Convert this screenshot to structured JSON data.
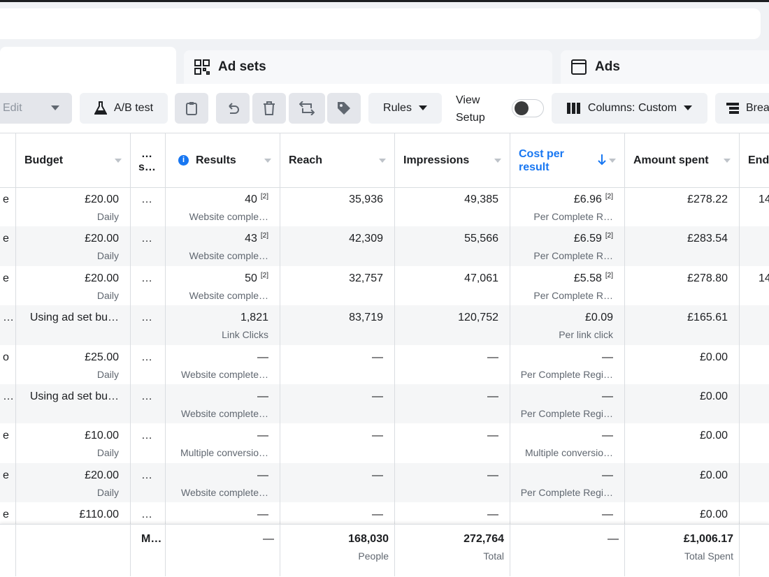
{
  "tabs": [
    "Ad sets",
    "Ads"
  ],
  "toolbar": {
    "edit": "Edit",
    "ab_test": "A/B test",
    "rules": "Rules",
    "view_setup": "View Setup",
    "columns": "Columns: Custom",
    "breakdown": "Brea"
  },
  "table": {
    "columns": [
      "Budget",
      "… s…",
      "Results",
      "Reach",
      "Impressions",
      "Cost per result",
      "Amount spent",
      "End"
    ],
    "rows": [
      {
        "cells": [
          {
            "text": "e"
          },
          {
            "text": "£20.00",
            "sub": "Daily"
          },
          {
            "text": "…"
          },
          {
            "text": "40",
            "note": "[2]",
            "sub": "Website comple…"
          },
          {
            "text": "35,936"
          },
          {
            "text": "49,385"
          },
          {
            "text": "£6.96",
            "note": "[2]",
            "sub": "Per Complete R…"
          },
          {
            "text": "£278.22"
          },
          {
            "text": "14"
          }
        ]
      },
      {
        "cells": [
          {
            "text": "e"
          },
          {
            "text": "£20.00",
            "sub": "Daily"
          },
          {
            "text": "…"
          },
          {
            "text": "43",
            "note": "[2]",
            "sub": "Website comple…"
          },
          {
            "text": "42,309"
          },
          {
            "text": "55,566"
          },
          {
            "text": "£6.59",
            "note": "[2]",
            "sub": "Per Complete R…"
          },
          {
            "text": "£283.54"
          }
        ]
      },
      {
        "cells": [
          {
            "text": "e"
          },
          {
            "text": "£20.00",
            "sub": "Daily"
          },
          {
            "text": "…"
          },
          {
            "text": "50",
            "note": "[2]",
            "sub": "Website comple…"
          },
          {
            "text": "32,757"
          },
          {
            "text": "47,061"
          },
          {
            "text": "£5.58",
            "note": "[2]",
            "sub": "Per Complete R…"
          },
          {
            "text": "£278.80"
          },
          {
            "text": "14"
          }
        ]
      },
      {
        "cells": [
          {
            "text": "…"
          },
          {
            "text": "Using ad set bu…"
          },
          {
            "text": "…"
          },
          {
            "text": "1,821",
            "sub": "Link Clicks"
          },
          {
            "text": "83,719"
          },
          {
            "text": "120,752"
          },
          {
            "text": "£0.09",
            "sub": "Per link click"
          },
          {
            "text": "£165.61"
          }
        ]
      },
      {
        "cells": [
          {
            "text": "o"
          },
          {
            "text": "£25.00",
            "sub": "Daily"
          },
          {
            "text": "…"
          },
          {
            "text": "—",
            "sub": "Website complete…"
          },
          {
            "text": "—"
          },
          {
            "text": "—"
          },
          {
            "text": "—",
            "sub": "Per Complete Regi…"
          },
          {
            "text": "£0.00"
          }
        ]
      },
      {
        "cells": [
          {
            "text": "…"
          },
          {
            "text": "Using ad set bu…"
          },
          {
            "text": "…"
          },
          {
            "text": "—",
            "sub": "Website complete…"
          },
          {
            "text": "—"
          },
          {
            "text": "—"
          },
          {
            "text": "—",
            "sub": "Per Complete Regi…"
          },
          {
            "text": "£0.00"
          }
        ]
      },
      {
        "cells": [
          {
            "text": "e"
          },
          {
            "text": "£10.00",
            "sub": "Daily"
          },
          {
            "text": "…"
          },
          {
            "text": "—",
            "sub": "Multiple conversio…"
          },
          {
            "text": "—"
          },
          {
            "text": "—"
          },
          {
            "text": "—",
            "sub": "Multiple conversio…"
          },
          {
            "text": "£0.00"
          }
        ]
      },
      {
        "cells": [
          {
            "text": "e"
          },
          {
            "text": "£20.00",
            "sub": "Daily"
          },
          {
            "text": "…"
          },
          {
            "text": "—",
            "sub": "Website complete…"
          },
          {
            "text": "—"
          },
          {
            "text": "—"
          },
          {
            "text": "—",
            "sub": "Per Complete Regi…"
          },
          {
            "text": "£0.00"
          }
        ]
      },
      {
        "cells": [
          {
            "text": "e"
          },
          {
            "text": "£110.00"
          },
          {
            "text": "…"
          },
          {
            "text": "—"
          },
          {
            "text": "—"
          },
          {
            "text": "—"
          },
          {
            "text": "—"
          },
          {
            "text": "£0.00"
          }
        ]
      }
    ],
    "footer": [
      {
        "text": "M…"
      },
      {
        "text": "—"
      },
      {
        "text": "168,030",
        "sub": "People"
      },
      {
        "text": "272,764",
        "sub": "Total"
      },
      {
        "text": "—"
      },
      {
        "text": "£1,006.17",
        "sub": "Total Spent"
      }
    ]
  }
}
